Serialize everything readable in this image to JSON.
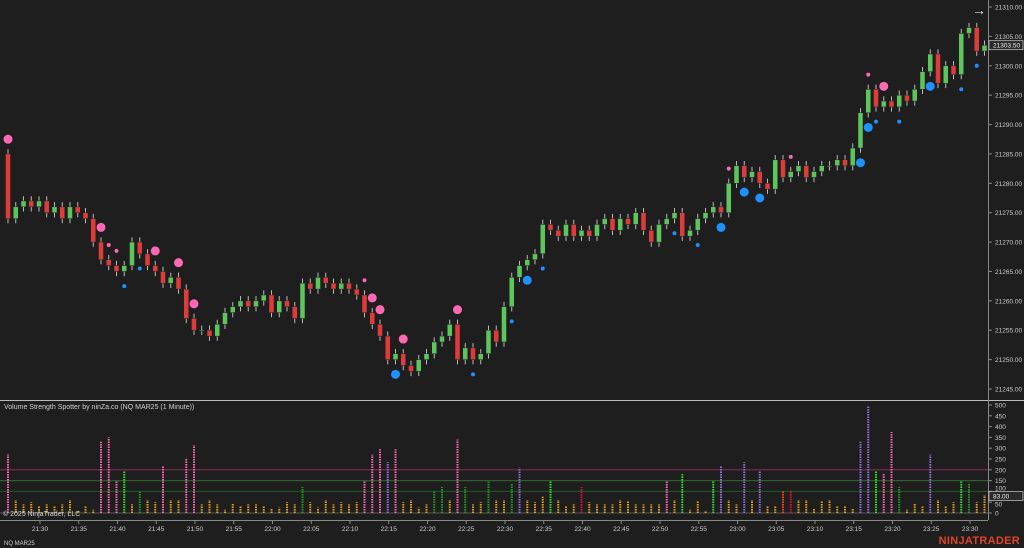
{
  "indicator_title": "Volume Strength Spotter by ninZa.co (NQ MAR25 (1 Minute))",
  "copyright": "© 2025 NinjaTrader, LLC",
  "instrument": "NQ MAR25",
  "logo": "NINJATRADER",
  "goto_icon": "arrow-right-icon",
  "colors": {
    "background": "#1e1e1e",
    "bull": "#5cc55c",
    "bear": "#e03b3b",
    "signal_bear": "#ff69b4",
    "signal_bull": "#1e90ff",
    "level_200": "#8b2a5a",
    "level_150": "#2e6b2e",
    "level_100": "#1f5a1f",
    "o": "#e8a317",
    "p": "#ff69b4",
    "v": "#9370db",
    "g": "#1fa01f",
    "G": "#33e033",
    "r": "#dc143c",
    "R": "#ff4500"
  },
  "price_axis": {
    "ticks": [
      "21310.00",
      "21305.00",
      "21300.00",
      "21295.00",
      "21290.00",
      "21285.00",
      "21280.00",
      "21275.00",
      "21270.00",
      "21265.00",
      "21260.00",
      "21255.00",
      "21250.00",
      "21245.00"
    ],
    "current": "21303.50"
  },
  "volume_axis": {
    "ticks": [
      "500",
      "450",
      "400",
      "350",
      "300",
      "250",
      "200",
      "150",
      "100",
      "50",
      "0"
    ],
    "current": "83.00",
    "levels": [
      200,
      150,
      100
    ]
  },
  "time_axis": [
    "21:30",
    "21:35",
    "21:40",
    "21:45",
    "21:50",
    "21:55",
    "22:00",
    "22:05",
    "22:10",
    "22:15",
    "22:20",
    "22:25",
    "22:30",
    "22:35",
    "22:40",
    "22:45",
    "22:50",
    "22:55",
    "23:00",
    "23:05",
    "23:10",
    "23:15",
    "23:20",
    "23:25",
    "23:30"
  ],
  "chart_data": {
    "type": "candlestick",
    "first_bar": "21:26",
    "interval": "1 Minute",
    "first_open": 21285,
    "close": [
      21274,
      21276,
      21277,
      21276,
      21277,
      21275,
      21276,
      21274,
      21276,
      21275,
      21274,
      21270,
      21267,
      21266,
      21265,
      21266,
      21270,
      21268,
      21266,
      21265,
      21263,
      21264,
      21262,
      21257,
      21255,
      21255,
      21254,
      21256,
      21258,
      21259,
      21260,
      21259,
      21260,
      21261,
      21258,
      21260,
      21259,
      21257,
      21263,
      21262,
      21264,
      21263,
      21262,
      21263,
      21262,
      21261,
      21258,
      21256,
      21254,
      21250,
      21251,
      21249,
      21248,
      21250,
      21251,
      21253,
      21254,
      21256,
      21250,
      21252,
      21250,
      21251,
      21255,
      21253,
      21259,
      21264,
      21266,
      21267,
      21268,
      21273,
      21272,
      21271,
      21273,
      21271,
      21272,
      21271,
      21273,
      21274,
      21272,
      21274,
      21273,
      21275,
      21272,
      21270,
      21273,
      21274,
      21275,
      21271,
      21272,
      21274,
      21275,
      21276,
      21275,
      21280,
      21283,
      21281,
      21282,
      21280,
      21279,
      21284,
      21281,
      21282,
      21283,
      21281,
      21282,
      21283,
      21283,
      21284,
      21283,
      21286,
      21292,
      21296,
      21293,
      21294,
      21293,
      21295,
      21294,
      21296,
      21299,
      21302,
      21297,
      21300,
      21298.5,
      21305.5,
      21306.5,
      21302.5,
      21303.5
    ],
    "volume": [
      [
        270,
        "p"
      ],
      [
        60,
        "o"
      ],
      [
        40,
        "o"
      ],
      [
        50,
        "o"
      ],
      [
        30,
        "o"
      ],
      [
        40,
        "o"
      ],
      [
        30,
        "o"
      ],
      [
        40,
        "o"
      ],
      [
        60,
        "o"
      ],
      [
        10,
        "o"
      ],
      [
        30,
        "o"
      ],
      [
        15,
        "o"
      ],
      [
        330,
        "p"
      ],
      [
        350,
        "p"
      ],
      [
        150,
        "p"
      ],
      [
        195,
        "G"
      ],
      [
        40,
        "o"
      ],
      [
        100,
        "g"
      ],
      [
        60,
        "o"
      ],
      [
        50,
        "o"
      ],
      [
        220,
        "p"
      ],
      [
        60,
        "o"
      ],
      [
        60,
        "o"
      ],
      [
        255,
        "p"
      ],
      [
        315,
        "p"
      ],
      [
        40,
        "o"
      ],
      [
        60,
        "o"
      ],
      [
        40,
        "o"
      ],
      [
        15,
        "o"
      ],
      [
        45,
        "o"
      ],
      [
        30,
        "o"
      ],
      [
        40,
        "o"
      ],
      [
        40,
        "o"
      ],
      [
        30,
        "o"
      ],
      [
        20,
        "o"
      ],
      [
        25,
        "o"
      ],
      [
        50,
        "o"
      ],
      [
        40,
        "o"
      ],
      [
        120,
        "g"
      ],
      [
        50,
        "o"
      ],
      [
        25,
        "o"
      ],
      [
        60,
        "o"
      ],
      [
        40,
        "o"
      ],
      [
        50,
        "o"
      ],
      [
        40,
        "o"
      ],
      [
        50,
        "o"
      ],
      [
        150,
        "p"
      ],
      [
        270,
        "p"
      ],
      [
        295,
        "p"
      ],
      [
        235,
        "v"
      ],
      [
        295,
        "p"
      ],
      [
        50,
        "o"
      ],
      [
        60,
        "o"
      ],
      [
        25,
        "o"
      ],
      [
        40,
        "o"
      ],
      [
        100,
        "g"
      ],
      [
        120,
        "g"
      ],
      [
        60,
        "o"
      ],
      [
        340,
        "p"
      ],
      [
        120,
        "g"
      ],
      [
        40,
        "o"
      ],
      [
        50,
        "o"
      ],
      [
        145,
        "g"
      ],
      [
        60,
        "o"
      ],
      [
        60,
        "o"
      ],
      [
        135,
        "g"
      ],
      [
        210,
        "v"
      ],
      [
        60,
        "o"
      ],
      [
        50,
        "o"
      ],
      [
        75,
        "o"
      ],
      [
        150,
        "G"
      ],
      [
        60,
        "o"
      ],
      [
        35,
        "o"
      ],
      [
        40,
        "o"
      ],
      [
        120,
        "r"
      ],
      [
        50,
        "o"
      ],
      [
        40,
        "o"
      ],
      [
        40,
        "o"
      ],
      [
        40,
        "o"
      ],
      [
        60,
        "o"
      ],
      [
        55,
        "o"
      ],
      [
        40,
        "o"
      ],
      [
        40,
        "o"
      ],
      [
        40,
        "o"
      ],
      [
        40,
        "o"
      ],
      [
        150,
        "p"
      ],
      [
        60,
        "o"
      ],
      [
        180,
        "G"
      ],
      [
        15,
        "o"
      ],
      [
        55,
        "o"
      ],
      [
        10,
        "o"
      ],
      [
        150,
        "G"
      ],
      [
        220,
        "v"
      ],
      [
        60,
        "o"
      ],
      [
        40,
        "o"
      ],
      [
        235,
        "v"
      ],
      [
        60,
        "o"
      ],
      [
        195,
        "v"
      ],
      [
        30,
        "o"
      ],
      [
        30,
        "o"
      ],
      [
        100,
        "R"
      ],
      [
        105,
        "r"
      ],
      [
        60,
        "o"
      ],
      [
        60,
        "o"
      ],
      [
        20,
        "o"
      ],
      [
        55,
        "o"
      ],
      [
        60,
        "o"
      ],
      [
        30,
        "o"
      ],
      [
        30,
        "o"
      ],
      [
        20,
        "o"
      ],
      [
        330,
        "v"
      ],
      [
        495,
        "v"
      ],
      [
        195,
        "G"
      ],
      [
        180,
        "p"
      ],
      [
        375,
        "p"
      ],
      [
        120,
        "g"
      ],
      [
        15,
        "o"
      ],
      [
        45,
        "o"
      ],
      [
        30,
        "o"
      ],
      [
        270,
        "v"
      ],
      [
        60,
        "o"
      ],
      [
        30,
        "o"
      ],
      [
        50,
        "o"
      ],
      [
        150,
        "G"
      ],
      [
        140,
        "g"
      ],
      [
        50,
        "o"
      ],
      [
        83,
        "o"
      ]
    ],
    "signals": [
      [
        "21:26",
        "bear",
        "large"
      ],
      [
        "21:38",
        "bear",
        "large"
      ],
      [
        "21:39",
        "bear",
        "small"
      ],
      [
        "21:40",
        "bear",
        "small"
      ],
      [
        "21:45",
        "bear",
        "large"
      ],
      [
        "21:48",
        "bear",
        "large"
      ],
      [
        "21:50",
        "bear",
        "large"
      ],
      [
        "22:12",
        "bear",
        "small"
      ],
      [
        "22:13",
        "bear",
        "large"
      ],
      [
        "22:14",
        "bear",
        "large"
      ],
      [
        "22:17",
        "bear",
        "large"
      ],
      [
        "22:24",
        "bear",
        "large"
      ],
      [
        "22:59",
        "bear",
        "small"
      ],
      [
        "23:07",
        "bear",
        "small"
      ],
      [
        "23:17",
        "bear",
        "small"
      ],
      [
        "23:19",
        "bear",
        "large"
      ],
      [
        "21:41",
        "bull",
        "small"
      ],
      [
        "21:43",
        "bull",
        "small"
      ],
      [
        "22:16",
        "bull",
        "large"
      ],
      [
        "22:26",
        "bull",
        "small"
      ],
      [
        "22:31",
        "bull",
        "small"
      ],
      [
        "22:33",
        "bull",
        "large"
      ],
      [
        "22:35",
        "bull",
        "small"
      ],
      [
        "22:52",
        "bull",
        "small"
      ],
      [
        "22:55",
        "bull",
        "small"
      ],
      [
        "22:58",
        "bull",
        "large"
      ],
      [
        "23:01",
        "bull",
        "large"
      ],
      [
        "23:03",
        "bull",
        "large"
      ],
      [
        "23:16",
        "bull",
        "large"
      ],
      [
        "23:17",
        "bull",
        "large"
      ],
      [
        "23:18",
        "bull",
        "small"
      ],
      [
        "23:21",
        "bull",
        "small"
      ],
      [
        "23:25",
        "bull",
        "large"
      ],
      [
        "23:29",
        "bull",
        "small"
      ],
      [
        "23:31",
        "bull",
        "small"
      ]
    ]
  }
}
